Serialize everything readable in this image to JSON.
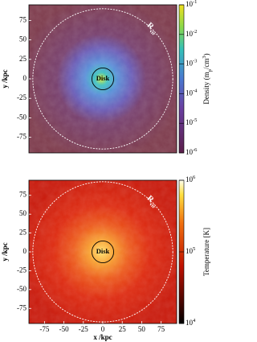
{
  "chart_data": [
    {
      "type": "heatmap",
      "ylabel": "y /kpc",
      "xlim": [
        -95,
        95
      ],
      "ylim": [
        -95,
        95
      ],
      "yticks": [
        -75,
        -50,
        -25,
        0,
        25,
        50,
        75
      ],
      "annotations": [
        "R_vir",
        "Disk"
      ],
      "colorbar_label": "Density (m_p/cm^3)",
      "zlog": true,
      "zlim": [
        1e-06,
        0.1
      ],
      "zticks": [
        {
          "value": 1e-06,
          "label": "10^-6"
        },
        {
          "value": 1e-05,
          "label": "10^-5"
        },
        {
          "value": 0.0001,
          "label": "10^-4"
        },
        {
          "value": 0.001,
          "label": "10^-3"
        },
        {
          "value": 0.01,
          "label": "10^-2"
        },
        {
          "value": 0.1,
          "label": "10^-1"
        }
      ]
    },
    {
      "type": "heatmap",
      "ylabel": "y /kpc",
      "xlabel": "x /kpc",
      "xlim": [
        -95,
        95
      ],
      "ylim": [
        -95,
        95
      ],
      "xticks": [
        -75,
        -50,
        -25,
        0,
        25,
        50,
        75
      ],
      "yticks": [
        -75,
        -50,
        -25,
        0,
        25,
        50,
        75
      ],
      "annotations": [
        "R_vir",
        "Disk"
      ],
      "colorbar_label": "Temperature [K]",
      "zlog": true,
      "zlim": [
        10000.0,
        1000000.0
      ],
      "zticks": [
        {
          "value": 10000.0,
          "label": "10^4"
        },
        {
          "value": 100000.0,
          "label": "10^5"
        },
        {
          "value": 1000000.0,
          "label": "10^6"
        }
      ]
    }
  ]
}
